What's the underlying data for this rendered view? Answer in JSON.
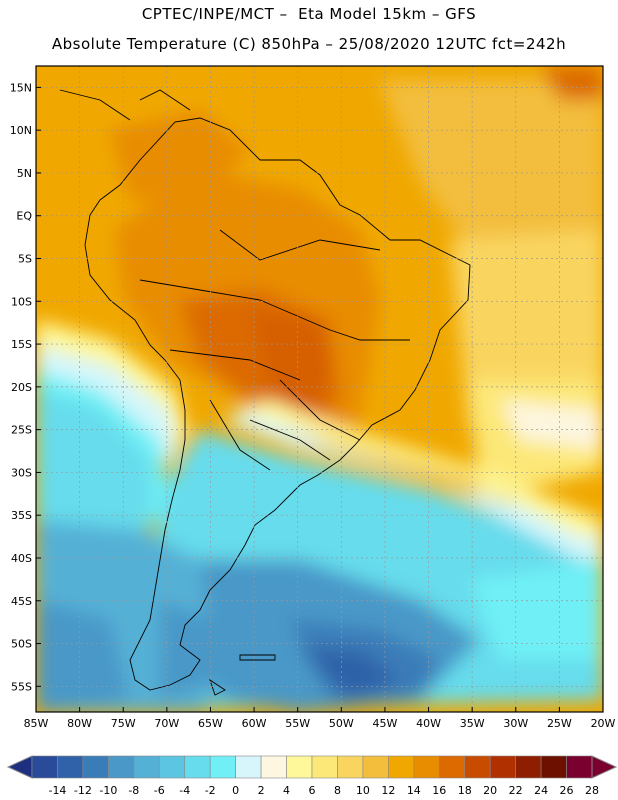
{
  "header": {
    "line1": "CPTEC/INPE/MCT –  Eta Model 15km – GFS",
    "line2": "Absolute Temperature (C) 850hPa – 25/08/2020 12UTC fct=242h"
  },
  "map": {
    "lat_labels": [
      "15N",
      "10N",
      "5N",
      "EQ",
      "5S",
      "10S",
      "15S",
      "20S",
      "25S",
      "30S",
      "35S",
      "40S",
      "45S",
      "50S",
      "55S"
    ],
    "lon_labels": [
      "85W",
      "80W",
      "75W",
      "70W",
      "65W",
      "60W",
      "55W",
      "50W",
      "45W",
      "40W",
      "35W",
      "30W",
      "25W",
      "20W"
    ],
    "lat_range": [
      17.5,
      -58.0
    ],
    "lon_range": [
      -85.0,
      -20.0
    ]
  },
  "colorbar": {
    "tick_labels": [
      "-14",
      "-12",
      "-10",
      "-8",
      "-6",
      "-4",
      "-2",
      "0",
      "2",
      "4",
      "6",
      "8",
      "10",
      "12",
      "14",
      "16",
      "18",
      "20",
      "22",
      "24",
      "26",
      "28"
    ],
    "colors": [
      "#2a4a9a",
      "#2f62a8",
      "#3a7cb8",
      "#4a98c8",
      "#55b0d6",
      "#5cc6e2",
      "#66dcec",
      "#70f0f6",
      "#d6f6fb",
      "#fdf6e0",
      "#fef89a",
      "#fce878",
      "#f9d560",
      "#f3be3c",
      "#f0a800",
      "#e88c00",
      "#dc6a00",
      "#c84c00",
      "#b03000",
      "#8f1e00",
      "#6e1000",
      "#7a0030"
    ],
    "under_color": "#1f2f7f",
    "over_color": "#7a0030"
  }
}
